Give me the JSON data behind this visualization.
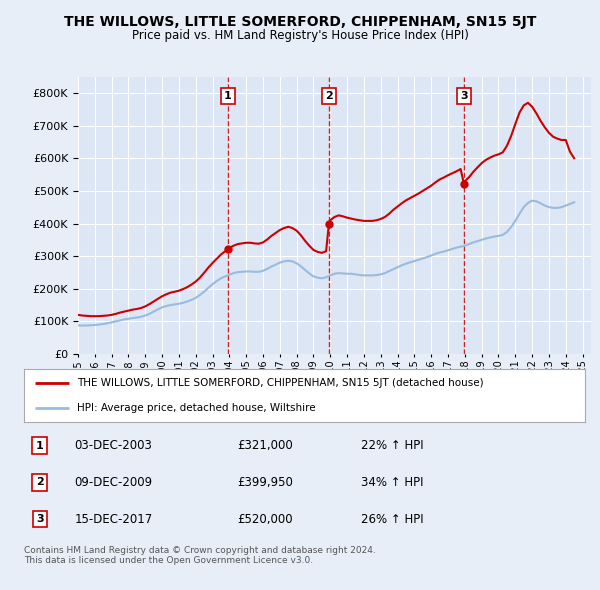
{
  "title": "THE WILLOWS, LITTLE SOMERFORD, CHIPPENHAM, SN15 5JT",
  "subtitle": "Price paid vs. HM Land Registry's House Price Index (HPI)",
  "ytick_values": [
    0,
    100000,
    200000,
    300000,
    400000,
    500000,
    600000,
    700000,
    800000
  ],
  "ylim": [
    0,
    850000
  ],
  "xlim_start": 1995.0,
  "xlim_end": 2025.5,
  "background_color": "#e8eef8",
  "plot_bg_color": "#dce6f5",
  "red_line_color": "#cc0000",
  "blue_line_color": "#99bbdd",
  "transaction_dates": [
    2003.92,
    2009.92,
    2017.95
  ],
  "transaction_prices": [
    321000,
    399950,
    520000
  ],
  "transaction_labels": [
    "1",
    "2",
    "3"
  ],
  "transaction_date_strs": [
    "03-DEC-2003",
    "09-DEC-2009",
    "15-DEC-2017"
  ],
  "transaction_price_strs": [
    "£321,000",
    "£399,950",
    "£520,000"
  ],
  "transaction_hpi_strs": [
    "22% ↑ HPI",
    "34% ↑ HPI",
    "26% ↑ HPI"
  ],
  "legend_label_red": "THE WILLOWS, LITTLE SOMERFORD, CHIPPENHAM, SN15 5JT (detached house)",
  "legend_label_blue": "HPI: Average price, detached house, Wiltshire",
  "footer_text": "Contains HM Land Registry data © Crown copyright and database right 2024.\nThis data is licensed under the Open Government Licence v3.0.",
  "hpi_x": [
    1995.0,
    1995.25,
    1995.5,
    1995.75,
    1996.0,
    1996.25,
    1996.5,
    1996.75,
    1997.0,
    1997.25,
    1997.5,
    1997.75,
    1998.0,
    1998.25,
    1998.5,
    1998.75,
    1999.0,
    1999.25,
    1999.5,
    1999.75,
    2000.0,
    2000.25,
    2000.5,
    2000.75,
    2001.0,
    2001.25,
    2001.5,
    2001.75,
    2002.0,
    2002.25,
    2002.5,
    2002.75,
    2003.0,
    2003.25,
    2003.5,
    2003.75,
    2004.0,
    2004.25,
    2004.5,
    2004.75,
    2005.0,
    2005.25,
    2005.5,
    2005.75,
    2006.0,
    2006.25,
    2006.5,
    2006.75,
    2007.0,
    2007.25,
    2007.5,
    2007.75,
    2008.0,
    2008.25,
    2008.5,
    2008.75,
    2009.0,
    2009.25,
    2009.5,
    2009.75,
    2010.0,
    2010.25,
    2010.5,
    2010.75,
    2011.0,
    2011.25,
    2011.5,
    2011.75,
    2012.0,
    2012.25,
    2012.5,
    2012.75,
    2013.0,
    2013.25,
    2013.5,
    2013.75,
    2014.0,
    2014.25,
    2014.5,
    2014.75,
    2015.0,
    2015.25,
    2015.5,
    2015.75,
    2016.0,
    2016.25,
    2016.5,
    2016.75,
    2017.0,
    2017.25,
    2017.5,
    2017.75,
    2018.0,
    2018.25,
    2018.5,
    2018.75,
    2019.0,
    2019.25,
    2019.5,
    2019.75,
    2020.0,
    2020.25,
    2020.5,
    2020.75,
    2021.0,
    2021.25,
    2021.5,
    2021.75,
    2022.0,
    2022.25,
    2022.5,
    2022.75,
    2023.0,
    2023.25,
    2023.5,
    2023.75,
    2024.0,
    2024.25,
    2024.5
  ],
  "hpi_y": [
    88000,
    87000,
    87500,
    88000,
    89000,
    90000,
    92000,
    94000,
    97000,
    100000,
    103000,
    106000,
    108000,
    110000,
    112000,
    114000,
    118000,
    123000,
    130000,
    137000,
    143000,
    147000,
    150000,
    152000,
    154000,
    157000,
    161000,
    166000,
    172000,
    181000,
    191000,
    203000,
    214000,
    224000,
    232000,
    238000,
    243000,
    248000,
    251000,
    252000,
    253000,
    253000,
    252000,
    252000,
    255000,
    261000,
    268000,
    274000,
    280000,
    284000,
    286000,
    284000,
    278000,
    269000,
    258000,
    247000,
    238000,
    234000,
    232000,
    235000,
    241000,
    246000,
    248000,
    247000,
    246000,
    246000,
    244000,
    242000,
    241000,
    241000,
    241000,
    242000,
    244000,
    248000,
    254000,
    260000,
    266000,
    272000,
    277000,
    281000,
    285000,
    289000,
    293000,
    297000,
    302000,
    307000,
    311000,
    314000,
    318000,
    322000,
    326000,
    329000,
    332000,
    337000,
    342000,
    346000,
    350000,
    354000,
    357000,
    360000,
    362000,
    365000,
    374000,
    389000,
    408000,
    430000,
    450000,
    463000,
    470000,
    468000,
    462000,
    455000,
    450000,
    448000,
    448000,
    450000,
    455000,
    460000,
    465000
  ],
  "red_x": [
    1995.0,
    1995.25,
    1995.5,
    1995.75,
    1996.0,
    1996.25,
    1996.5,
    1996.75,
    1997.0,
    1997.25,
    1997.5,
    1997.75,
    1998.0,
    1998.25,
    1998.5,
    1998.75,
    1999.0,
    1999.25,
    1999.5,
    1999.75,
    2000.0,
    2000.25,
    2000.5,
    2000.75,
    2001.0,
    2001.25,
    2001.5,
    2001.75,
    2002.0,
    2002.25,
    2002.5,
    2002.75,
    2003.0,
    2003.25,
    2003.5,
    2003.75,
    2003.92,
    2004.0,
    2004.25,
    2004.5,
    2004.75,
    2005.0,
    2005.25,
    2005.5,
    2005.75,
    2006.0,
    2006.25,
    2006.5,
    2006.75,
    2007.0,
    2007.25,
    2007.5,
    2007.75,
    2008.0,
    2008.25,
    2008.5,
    2008.75,
    2009.0,
    2009.25,
    2009.5,
    2009.75,
    2009.92,
    2010.0,
    2010.25,
    2010.5,
    2010.75,
    2011.0,
    2011.25,
    2011.5,
    2011.75,
    2012.0,
    2012.25,
    2012.5,
    2012.75,
    2013.0,
    2013.25,
    2013.5,
    2013.75,
    2014.0,
    2014.25,
    2014.5,
    2014.75,
    2015.0,
    2015.25,
    2015.5,
    2015.75,
    2016.0,
    2016.25,
    2016.5,
    2016.75,
    2017.0,
    2017.25,
    2017.5,
    2017.75,
    2017.95,
    2018.0,
    2018.25,
    2018.5,
    2018.75,
    2019.0,
    2019.25,
    2019.5,
    2019.75,
    2020.0,
    2020.25,
    2020.5,
    2020.75,
    2021.0,
    2021.25,
    2021.5,
    2021.75,
    2022.0,
    2022.25,
    2022.5,
    2022.75,
    2023.0,
    2023.25,
    2023.5,
    2023.75,
    2024.0,
    2024.25,
    2024.5
  ],
  "red_y": [
    120000,
    118000,
    117000,
    116000,
    116000,
    116000,
    117000,
    118000,
    120000,
    123000,
    127000,
    130000,
    133000,
    136000,
    138000,
    141000,
    146000,
    153000,
    161000,
    169000,
    177000,
    183000,
    188000,
    191000,
    194000,
    199000,
    205000,
    213000,
    222000,
    234000,
    249000,
    265000,
    279000,
    292000,
    305000,
    315000,
    321000,
    325000,
    332000,
    337000,
    339000,
    341000,
    341000,
    339000,
    338000,
    342000,
    351000,
    362000,
    371000,
    380000,
    386000,
    390000,
    386000,
    378000,
    364000,
    347000,
    332000,
    319000,
    313000,
    310000,
    315000,
    399950,
    410000,
    420000,
    425000,
    422000,
    418000,
    415000,
    412000,
    410000,
    408000,
    408000,
    408000,
    410000,
    414000,
    420000,
    430000,
    442000,
    452000,
    462000,
    471000,
    478000,
    485000,
    492000,
    500000,
    508000,
    516000,
    526000,
    535000,
    541000,
    548000,
    554000,
    560000,
    567000,
    520000,
    530000,
    542000,
    558000,
    572000,
    585000,
    595000,
    602000,
    608000,
    612000,
    618000,
    638000,
    668000,
    705000,
    740000,
    762000,
    770000,
    758000,
    738000,
    715000,
    695000,
    678000,
    666000,
    660000,
    656000,
    656000,
    620000,
    600000
  ]
}
